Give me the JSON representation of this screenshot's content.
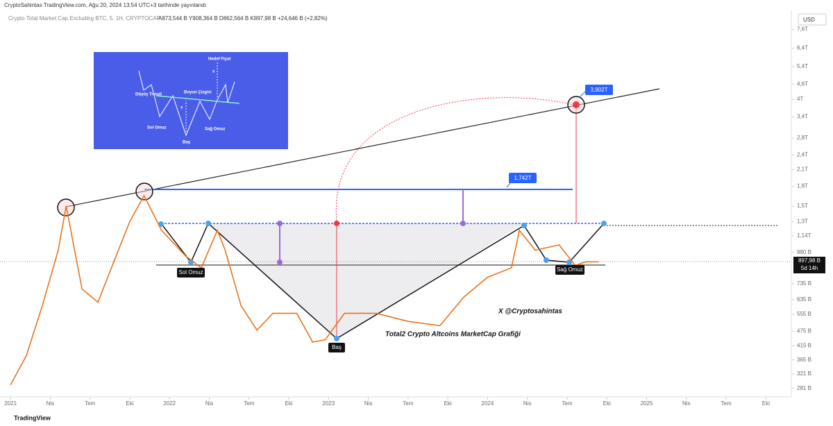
{
  "header": {
    "publisher": "CryptoSahintas TradingView.com, Ağu 20, 2024 13:54 UTC+3 tarihinde yayınlandı",
    "symbol": "Crypto Total Market Cap Excluding BTC, 5, 1H, CRYPTOCAP",
    "ohlc": "A873,544 B Y908,364 B D862,564 B K897,98 B +24,646 B (+2,82%)",
    "currency": "USD"
  },
  "chart_data": {
    "type": "line",
    "log_scale": true,
    "color": "#e8731a",
    "x": [
      2021.0,
      2021.1,
      2021.2,
      2021.3,
      2021.35,
      2021.45,
      2021.55,
      2021.65,
      2021.75,
      2021.84,
      2021.95,
      2022.1,
      2022.2,
      2022.3,
      2022.35,
      2022.45,
      2022.55,
      2022.65,
      2022.8,
      2022.9,
      2022.98,
      2023.1,
      2023.3,
      2023.5,
      2023.7,
      2023.85,
      2024.0,
      2024.15,
      2024.2,
      2024.3,
      2024.45,
      2024.55,
      2024.62,
      2024.7
    ],
    "values": [
      290,
      380,
      600,
      1000,
      1500,
      700,
      620,
      900,
      1300,
      1650,
      1200,
      950,
      850,
      1200,
      1000,
      600,
      480,
      560,
      560,
      430,
      440,
      560,
      560,
      520,
      500,
      650,
      780,
      850,
      1200,
      1000,
      1050,
      870,
      900,
      898
    ],
    "xlim": [
      2020.934,
      2025.91
    ],
    "xticks": [
      {
        "value": 2021,
        "label": "2021"
      },
      {
        "value": 2021.25,
        "label": "Nis"
      },
      {
        "value": 2021.5,
        "label": "Tem"
      },
      {
        "value": 2021.75,
        "label": "Eki"
      },
      {
        "value": 2022,
        "label": "2022"
      },
      {
        "value": 2022.25,
        "label": "Nis"
      },
      {
        "value": 2022.5,
        "label": "Tem"
      },
      {
        "value": 2022.75,
        "label": "Eki"
      },
      {
        "value": 2023,
        "label": "2023"
      },
      {
        "value": 2023.25,
        "label": "Nis"
      },
      {
        "value": 2023.5,
        "label": "Tem"
      },
      {
        "value": 2023.75,
        "label": "Eki"
      },
      {
        "value": 2024,
        "label": "2024"
      },
      {
        "value": 2024.25,
        "label": "Nis"
      },
      {
        "value": 2024.5,
        "label": "Tem"
      },
      {
        "value": 2024.75,
        "label": "Eki"
      },
      {
        "value": 2025,
        "label": "2025"
      },
      {
        "value": 2025.25,
        "label": "Nis"
      },
      {
        "value": 2025.5,
        "label": "Tem"
      },
      {
        "value": 2025.75,
        "label": "Eki"
      }
    ],
    "ylim": [
      260,
      8880
    ],
    "yticks": [
      {
        "value": 7600,
        "label": "7,6T"
      },
      {
        "value": 6400,
        "label": "6,4T"
      },
      {
        "value": 5400,
        "label": "5,4T"
      },
      {
        "value": 4600,
        "label": "4,6T"
      },
      {
        "value": 4000,
        "label": "4T"
      },
      {
        "value": 3400,
        "label": "3,4T"
      },
      {
        "value": 2800,
        "label": "2,8T"
      },
      {
        "value": 2400,
        "label": "2,4T"
      },
      {
        "value": 2100,
        "label": "2,1T"
      },
      {
        "value": 1800,
        "label": "1,8T"
      },
      {
        "value": 1500,
        "label": "1,5T"
      },
      {
        "value": 1300,
        "label": "1,3T"
      },
      {
        "value": 1140,
        "label": "1,14T"
      },
      {
        "value": 980,
        "label": "980 B"
      },
      {
        "value": 735,
        "label": "735 B"
      },
      {
        "value": 635,
        "label": "635 B"
      },
      {
        "value": 555,
        "label": "555 B"
      },
      {
        "value": 475,
        "label": "475 B"
      },
      {
        "value": 415,
        "label": "415 B"
      },
      {
        "value": 365,
        "label": "365 B"
      },
      {
        "value": 321,
        "label": "321 B"
      },
      {
        "value": 281,
        "label": "281 B"
      }
    ],
    "last_price": {
      "value": 897.98,
      "label": "897,98 B"
    },
    "countdown": "5d 14h",
    "annotations": {
      "left_shoulder": "Sol Omuz",
      "head": "Baş",
      "right_shoulder": "Sağ Omuz",
      "target1": "1,742T",
      "target2": "3,902T",
      "author": "X @Cryptosahintas",
      "caption": "Total2 Crypto Altcoins MarketCap Grafiği"
    }
  },
  "inset": {
    "target": "Hedef Fiyat",
    "downtrend": "Düşüş Trendi",
    "neckline": "Boyun Çizgisi",
    "left_shoulder": "Sol Omuz",
    "head": "Baş",
    "right_shoulder": "Sağ Omuz",
    "x1": "x",
    "x2": "x"
  },
  "footer": {
    "brand": "TradingView"
  }
}
